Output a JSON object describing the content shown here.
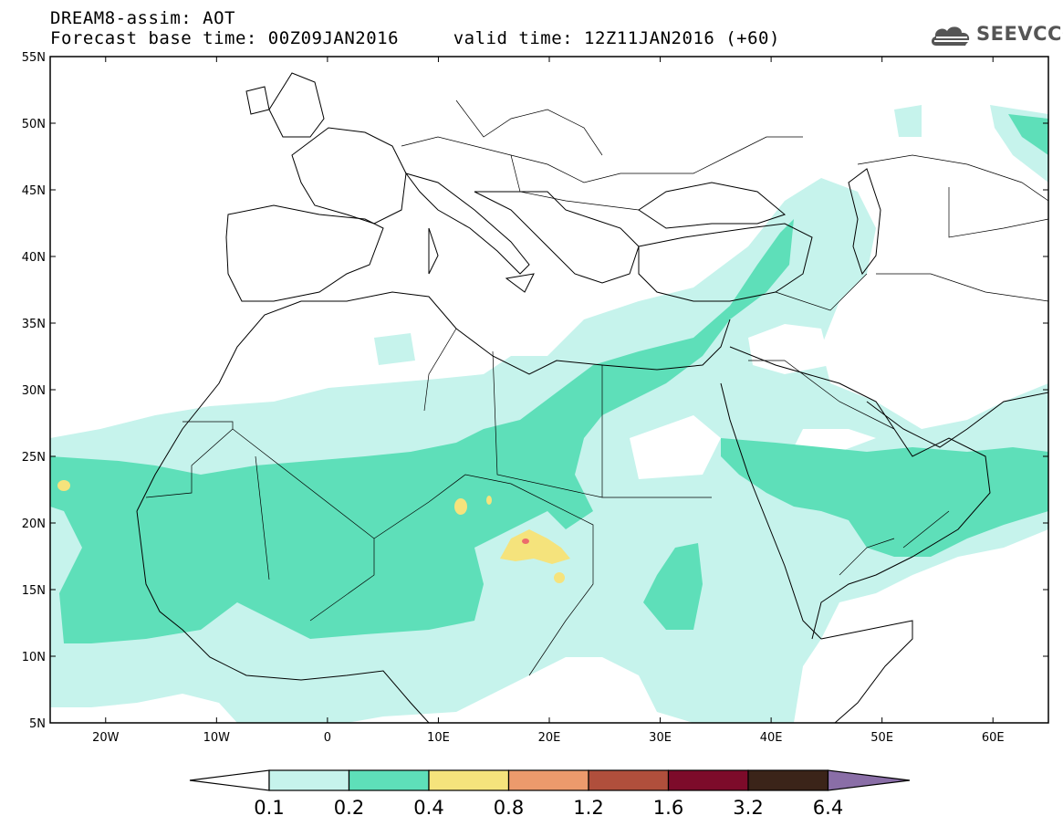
{
  "header": {
    "line1": "DREAM8-assim: AOT",
    "line2": "Forecast base time: 00Z09JAN2016     valid time: 12Z11JAN2016 (+60)"
  },
  "logo": {
    "text": "SEEVCCC",
    "icon": "cloud-icon",
    "color": "#555555"
  },
  "map": {
    "lon_range": [
      -25,
      65
    ],
    "lat_range": [
      5,
      55
    ],
    "lat_labels": [
      "55N",
      "50N",
      "45N",
      "40N",
      "35N",
      "30N",
      "25N",
      "20N",
      "15N",
      "10N",
      "5N"
    ],
    "lon_labels": [
      "20W",
      "10W",
      "0",
      "10E",
      "20E",
      "30E",
      "40E",
      "50E",
      "60E"
    ],
    "coastline_color": "#000000"
  },
  "colorbar": {
    "values": [
      "0.1",
      "0.2",
      "0.4",
      "0.8",
      "1.2",
      "1.6",
      "3.2",
      "6.4"
    ],
    "colors": [
      "#ffffff",
      "#c6f3ec",
      "#5edfb9",
      "#f5e37c",
      "#ec9a6c",
      "#b04f3c",
      "#7d0b2a",
      "#3b2419",
      "#8a6ea7"
    ]
  }
}
